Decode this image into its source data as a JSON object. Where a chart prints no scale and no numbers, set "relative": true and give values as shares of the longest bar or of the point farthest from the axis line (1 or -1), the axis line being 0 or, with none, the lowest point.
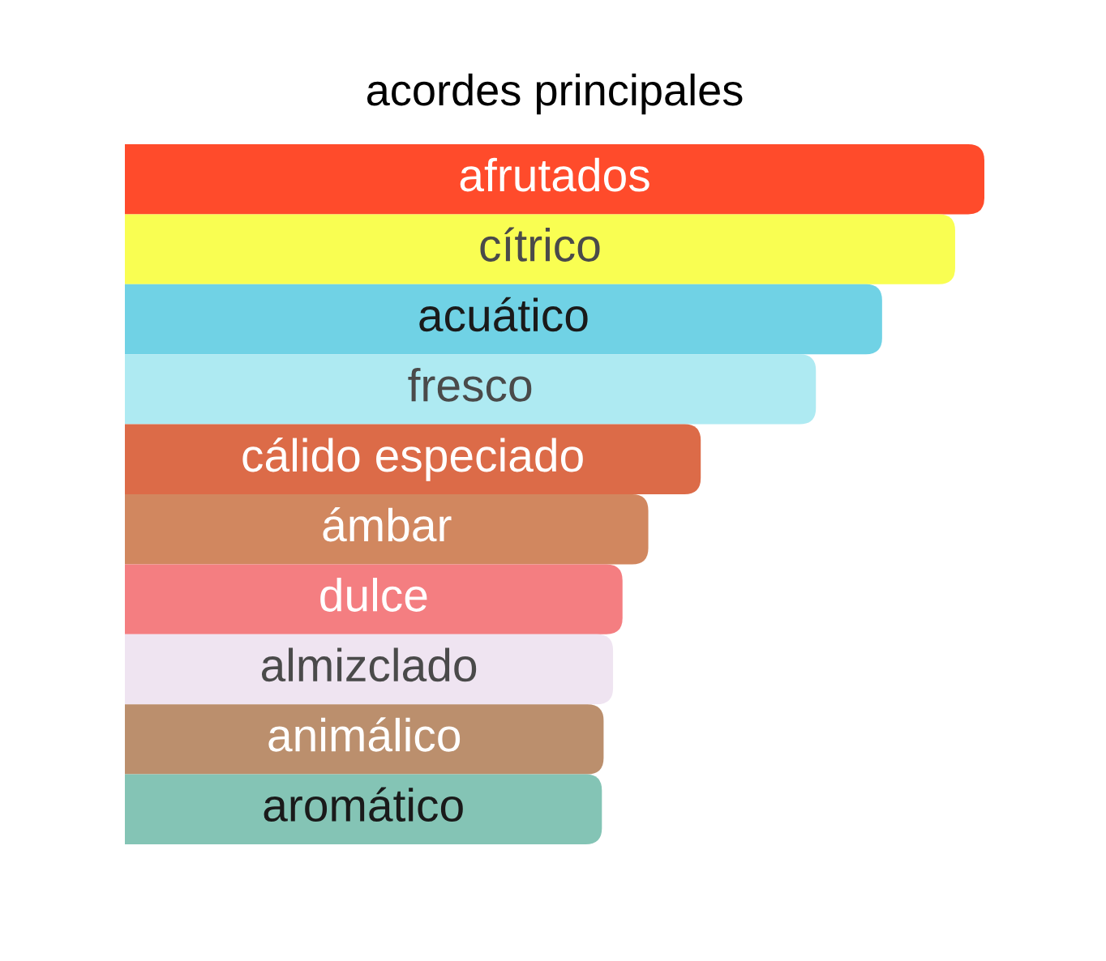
{
  "chart_data": {
    "type": "bar",
    "orientation": "horizontal",
    "relative": true,
    "title": "acordes principales",
    "categories": [
      "afrutados",
      "cítrico",
      "acuático",
      "fresco",
      "cálido especiado",
      "ámbar",
      "dulce",
      "almizclado",
      "animálico",
      "aromático"
    ],
    "values": [
      1,
      0.966,
      0.881,
      0.804,
      0.67,
      0.609,
      0.579,
      0.568,
      0.557,
      0.555
    ],
    "colors": [
      "#ff4b2b",
      "#f9fe52",
      "#70d2e5",
      "#aeeaf2",
      "#dc6b48",
      "#d1875f",
      "#f47e81",
      "#efe4f1",
      "#bb8f6d",
      "#84c4b5"
    ]
  }
}
